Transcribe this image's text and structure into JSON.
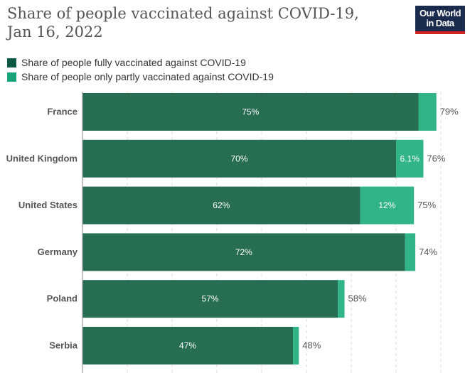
{
  "header": {
    "title": "Share of people vaccinated against COVID-19, Jan 16, 2022",
    "logo_line1": "Our World",
    "logo_line2": "in Data"
  },
  "chart_data": {
    "type": "bar",
    "orientation": "horizontal",
    "stacked": true,
    "title": "Share of people vaccinated against COVID-19, Jan 16, 2022",
    "categories": [
      "France",
      "United Kingdom",
      "United States",
      "Germany",
      "Poland",
      "Serbia"
    ],
    "series": [
      {
        "name": "Share of people fully vaccinated against COVID-19",
        "color": "#266d52",
        "values": [
          75,
          70,
          62,
          72,
          57,
          47
        ],
        "labels": [
          "75%",
          "70%",
          "62%",
          "72%",
          "57%",
          "47%"
        ]
      },
      {
        "name": "Share of people only partly vaccinated against COVID-19",
        "color": "#27b083",
        "values": [
          4,
          6.1,
          12,
          2.3,
          1.5,
          1.3
        ],
        "labels": [
          "",
          "6.1%",
          "12%",
          "",
          "",
          ""
        ]
      }
    ],
    "totals": [
      "79%",
      "76%",
      "75%",
      "74%",
      "58%",
      "48%"
    ],
    "xlim": [
      0,
      80
    ],
    "grid": true,
    "grid_step": 10,
    "legend": "top-left"
  }
}
